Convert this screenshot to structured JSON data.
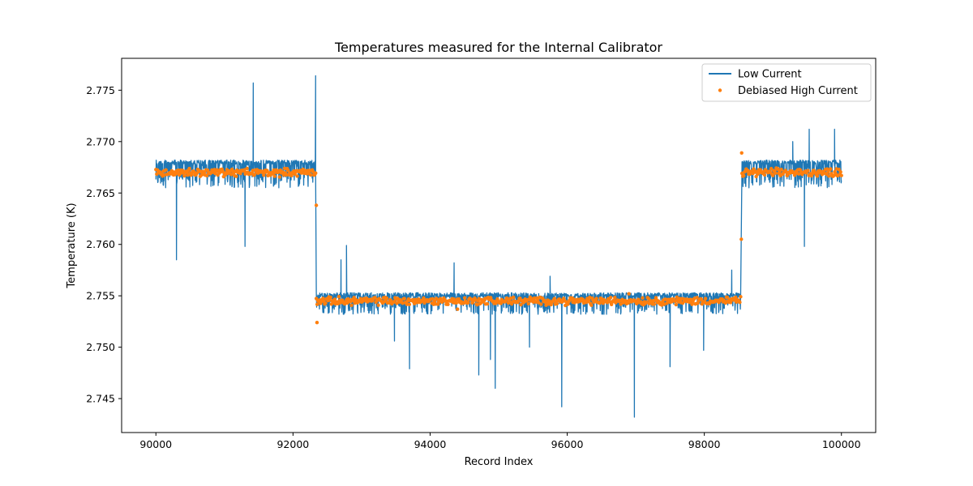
{
  "chart_data": {
    "type": "line",
    "title": "Temperatures measured for the Internal Calibrator",
    "xlabel": "Record Index",
    "ylabel": "Temperature (K)",
    "xlim": [
      89500,
      100500
    ],
    "ylim": [
      2.7417,
      2.7781
    ],
    "xticks": [
      90000,
      92000,
      94000,
      96000,
      98000,
      100000
    ],
    "xtick_labels": [
      "90000",
      "92000",
      "94000",
      "96000",
      "98000",
      "100000"
    ],
    "yticks": [
      2.745,
      2.75,
      2.755,
      2.76,
      2.765,
      2.77,
      2.775
    ],
    "ytick_labels": [
      "2.745",
      "2.750",
      "2.755",
      "2.760",
      "2.765",
      "2.770",
      "2.775"
    ],
    "grid": false,
    "legend_position": "top-right",
    "segments": [
      {
        "x_start": 90000,
        "x_end": 92330,
        "center": 2.767,
        "band": [
          2.7655,
          2.7682
        ]
      },
      {
        "x_start": 92340,
        "x_end": 98530,
        "center": 2.7545,
        "band": [
          2.7532,
          2.7553
        ]
      },
      {
        "x_start": 98550,
        "x_end": 100000,
        "center": 2.767,
        "band": [
          2.7655,
          2.7682
        ]
      }
    ],
    "series": [
      {
        "name": "Low Current",
        "kind": "line",
        "color": "#1f77b4",
        "spikes": [
          {
            "x": 90300,
            "y": 2.7585
          },
          {
            "x": 91420,
            "y": 2.7757
          },
          {
            "x": 91300,
            "y": 2.7598
          },
          {
            "x": 92330,
            "y": 2.7764
          },
          {
            "x": 92780,
            "y": 2.7599
          },
          {
            "x": 92700,
            "y": 2.7585
          },
          {
            "x": 93480,
            "y": 2.7506
          },
          {
            "x": 93700,
            "y": 2.7479
          },
          {
            "x": 94350,
            "y": 2.7582
          },
          {
            "x": 94710,
            "y": 2.7473
          },
          {
            "x": 94880,
            "y": 2.7488
          },
          {
            "x": 94950,
            "y": 2.746
          },
          {
            "x": 95450,
            "y": 2.75
          },
          {
            "x": 95920,
            "y": 2.7442
          },
          {
            "x": 95750,
            "y": 2.7569
          },
          {
            "x": 96980,
            "y": 2.7432
          },
          {
            "x": 97500,
            "y": 2.7481
          },
          {
            "x": 97990,
            "y": 2.7497
          },
          {
            "x": 98400,
            "y": 2.7575
          },
          {
            "x": 99290,
            "y": 2.77
          },
          {
            "x": 99460,
            "y": 2.7598
          },
          {
            "x": 99530,
            "y": 2.7712
          },
          {
            "x": 99900,
            "y": 2.7712
          }
        ]
      },
      {
        "name": "Debiased High Current",
        "kind": "scatter",
        "color": "#ff7f0e",
        "outliers": [
          {
            "x": 92340,
            "y": 2.7638
          },
          {
            "x": 92350,
            "y": 2.7524
          },
          {
            "x": 98540,
            "y": 2.7605
          },
          {
            "x": 98545,
            "y": 2.7689
          },
          {
            "x": 94400,
            "y": 2.7537
          },
          {
            "x": 96900,
            "y": 2.7552
          }
        ]
      }
    ]
  }
}
